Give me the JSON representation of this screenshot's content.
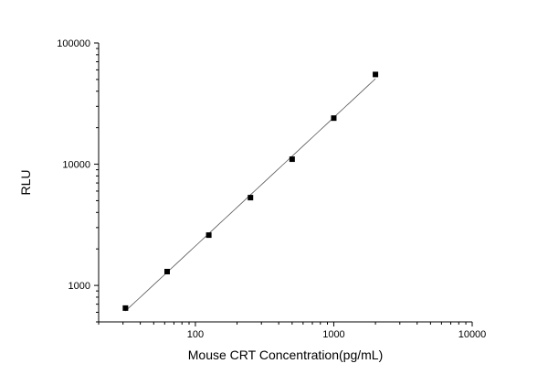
{
  "chart_data": {
    "type": "scatter",
    "title": "",
    "xlabel": "Mouse CRT Concentration(pg/mL)",
    "ylabel": "RLU",
    "xscale": "log",
    "yscale": "log",
    "xlim": [
      20,
      10000
    ],
    "ylim": [
      500,
      100000
    ],
    "grid": false,
    "x_ticks": [
      100,
      1000,
      10000
    ],
    "x_tick_labels": [
      "100",
      "1000",
      "10000"
    ],
    "y_ticks": [
      1000,
      10000,
      100000
    ],
    "y_tick_labels": [
      "1000",
      "10000",
      "100000"
    ],
    "points": [
      {
        "x": 31.25,
        "y": 650
      },
      {
        "x": 62.5,
        "y": 1300
      },
      {
        "x": 125,
        "y": 2600
      },
      {
        "x": 250,
        "y": 5300
      },
      {
        "x": 500,
        "y": 11000
      },
      {
        "x": 1000,
        "y": 24000
      },
      {
        "x": 2000,
        "y": 55000
      }
    ],
    "fit_line": true,
    "marker": "square",
    "colors": {
      "marker": "#000000",
      "line": "#555555",
      "axis": "#000000"
    }
  }
}
